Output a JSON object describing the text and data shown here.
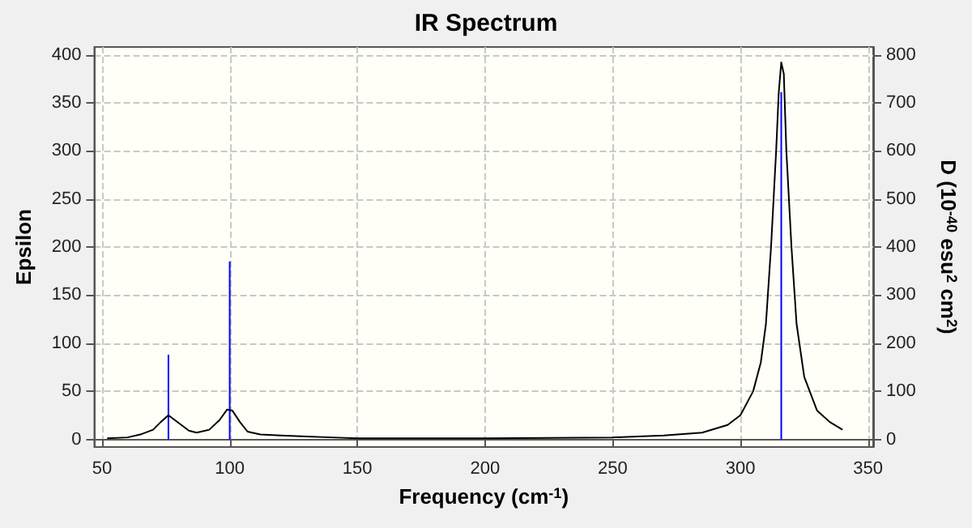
{
  "chart_data": {
    "type": "line",
    "title": "IR Spectrum",
    "xlabel": "Frequency (cm$^{-1}$)",
    "ylabel": "Epsilon",
    "y2label": "D (10$^{-40}$ esu$^{2}$ cm$^{2}$)",
    "xlim": [
      47,
      352
    ],
    "xticks": [
      50,
      100,
      150,
      200,
      250,
      300,
      350
    ],
    "ylim": [
      -8,
      408
    ],
    "yticks": [
      0,
      50,
      100,
      150,
      200,
      250,
      300,
      350,
      400
    ],
    "y2lim": [
      -16,
      816
    ],
    "y2ticks": [
      0,
      100,
      200,
      300,
      400,
      500,
      600,
      700,
      800
    ],
    "grid": true,
    "marker": "none",
    "line_style": "solid",
    "series": [
      {
        "color": "#000000",
        "x": [
          52,
          60,
          65,
          70,
          73,
          76,
          80,
          84,
          87,
          92,
          96,
          99,
          101,
          104,
          107,
          112,
          120,
          130,
          140,
          150,
          200,
          250,
          270,
          285,
          295,
          300,
          305,
          308,
          310,
          312,
          314,
          315,
          316,
          317,
          318,
          320,
          322,
          325,
          330,
          335,
          340
        ],
        "values": [
          1,
          2,
          5,
          10,
          18,
          25,
          17,
          9,
          7,
          10,
          20,
          31,
          30,
          18,
          8,
          5,
          4,
          3,
          2,
          1,
          1,
          2,
          4,
          7,
          15,
          25,
          50,
          80,
          120,
          200,
          300,
          360,
          392,
          380,
          300,
          200,
          120,
          65,
          30,
          18,
          10
        ]
      },
      {
        "type": "bar",
        "axis": "y2",
        "color": "#0000ff",
        "x": [
          76,
          100,
          316
        ],
        "values": [
          176,
          370,
          722
        ]
      }
    ]
  }
}
